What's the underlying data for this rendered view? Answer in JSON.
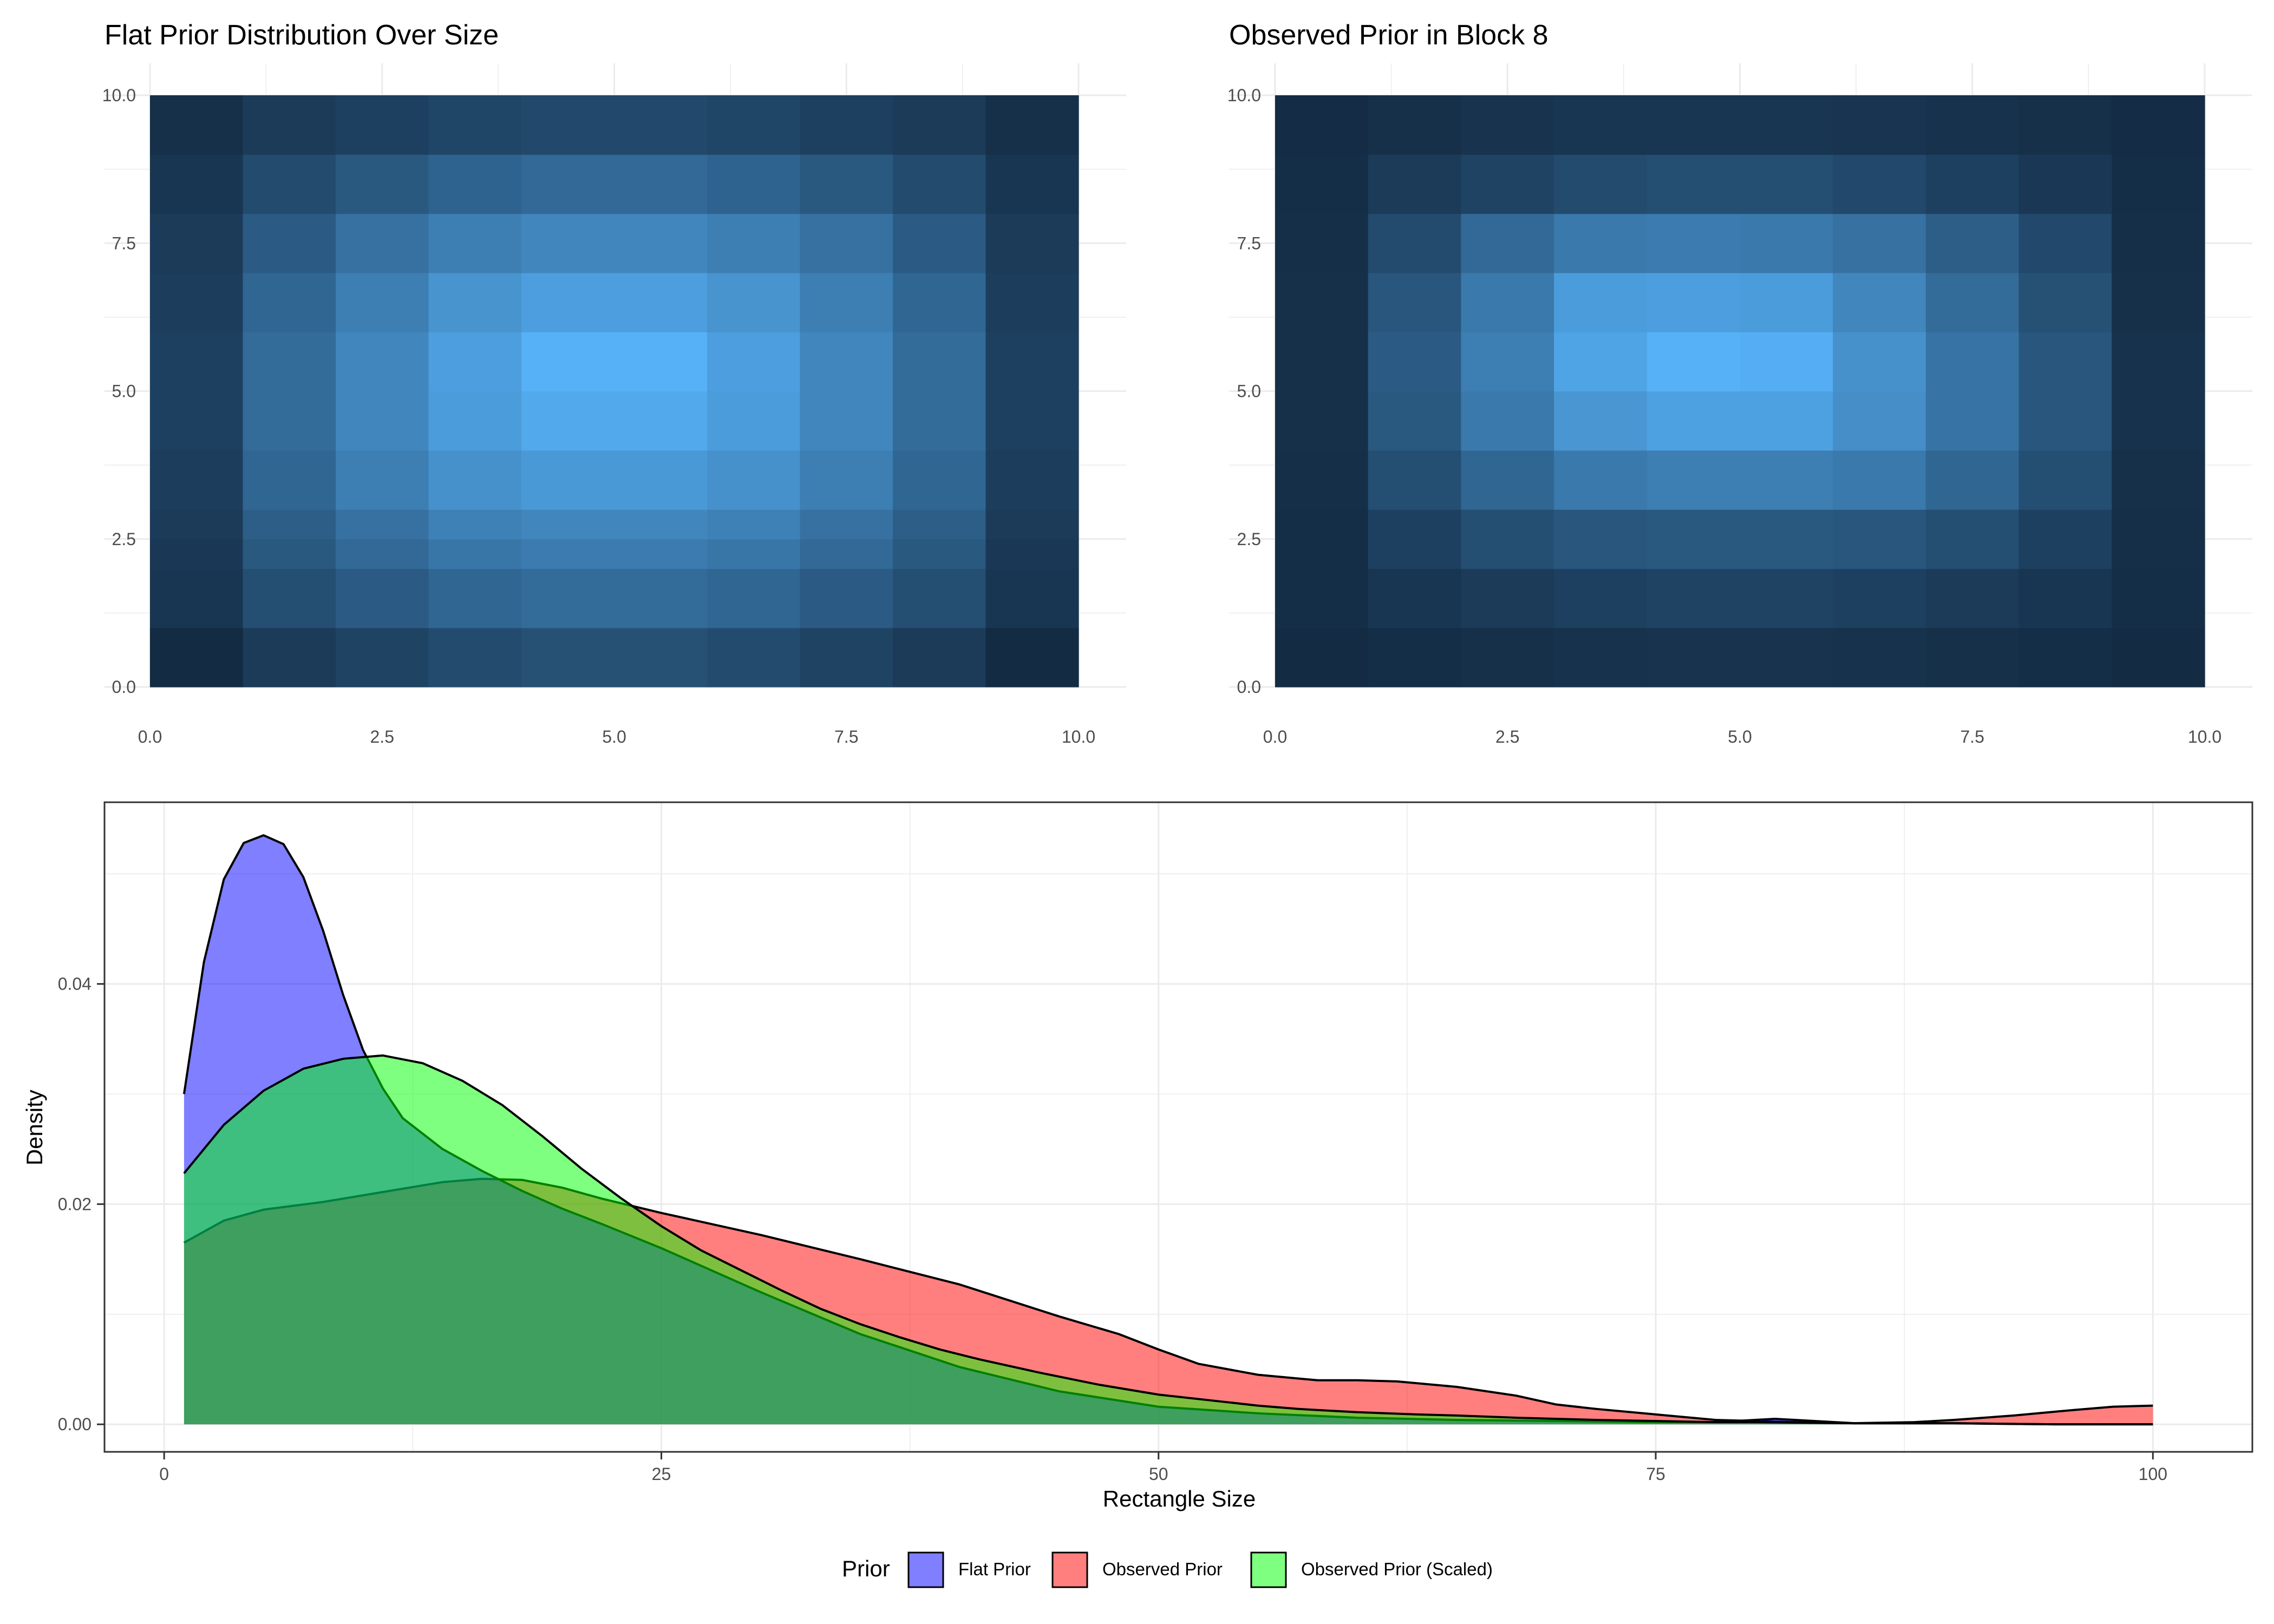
{
  "chart_data": [
    {
      "type": "heatmap",
      "title": "Flat Prior Distribution Over Size",
      "xlabel": "",
      "ylabel": "",
      "xlim": [
        0,
        10
      ],
      "ylim": [
        0,
        10
      ],
      "x_ticks": [
        "0.0",
        "2.5",
        "5.0",
        "7.5",
        "10.0"
      ],
      "y_ticks": [
        "0.0",
        "2.5",
        "5.0",
        "7.5",
        "10.0"
      ],
      "x_edges": [
        0,
        1,
        2,
        3,
        4,
        5,
        6,
        7,
        8,
        9,
        10
      ],
      "y_edges": [
        0,
        1,
        2,
        2.5,
        3,
        4,
        5,
        6,
        7,
        8,
        9,
        10
      ],
      "values": [
        [
          0.0,
          0.12,
          0.18,
          0.24,
          0.28,
          0.28,
          0.24,
          0.18,
          0.12,
          0.0
        ],
        [
          0.08,
          0.26,
          0.36,
          0.44,
          0.48,
          0.48,
          0.44,
          0.36,
          0.26,
          0.08
        ],
        [
          0.1,
          0.34,
          0.46,
          0.56,
          0.6,
          0.6,
          0.56,
          0.46,
          0.34,
          0.1
        ],
        [
          0.12,
          0.38,
          0.52,
          0.64,
          0.68,
          0.68,
          0.64,
          0.52,
          0.38,
          0.12
        ],
        [
          0.14,
          0.44,
          0.62,
          0.76,
          0.82,
          0.82,
          0.76,
          0.62,
          0.44,
          0.14
        ],
        [
          0.16,
          0.48,
          0.68,
          0.84,
          0.94,
          0.94,
          0.84,
          0.68,
          0.48,
          0.16
        ],
        [
          0.16,
          0.48,
          0.68,
          0.86,
          1.0,
          1.0,
          0.86,
          0.68,
          0.48,
          0.16
        ],
        [
          0.14,
          0.44,
          0.62,
          0.78,
          0.86,
          0.86,
          0.78,
          0.62,
          0.44,
          0.14
        ],
        [
          0.12,
          0.36,
          0.52,
          0.62,
          0.68,
          0.68,
          0.62,
          0.52,
          0.36,
          0.12
        ],
        [
          0.08,
          0.24,
          0.34,
          0.42,
          0.46,
          0.46,
          0.42,
          0.34,
          0.24,
          0.08
        ],
        [
          0.04,
          0.12,
          0.16,
          0.2,
          0.22,
          0.22,
          0.2,
          0.16,
          0.12,
          0.04
        ]
      ],
      "color_low": "#132b43",
      "color_high": "#56b1f7",
      "grid": true
    },
    {
      "type": "heatmap",
      "title": "Observed Prior in Block 8",
      "xlabel": "",
      "ylabel": "",
      "xlim": [
        0,
        10
      ],
      "ylim": [
        0,
        10
      ],
      "x_ticks": [
        "0.0",
        "2.5",
        "5.0",
        "7.5",
        "10.0"
      ],
      "y_ticks": [
        "0.0",
        "2.5",
        "5.0",
        "7.5",
        "10.0"
      ],
      "x_edges": [
        0,
        1,
        2,
        3,
        4,
        5,
        6,
        7,
        8,
        9,
        10
      ],
      "y_edges": [
        0,
        1,
        2,
        3,
        4,
        5,
        6,
        7,
        8,
        9,
        10
      ],
      "values": [
        [
          0.0,
          0.02,
          0.04,
          0.05,
          0.06,
          0.06,
          0.05,
          0.04,
          0.02,
          0.0
        ],
        [
          0.02,
          0.08,
          0.12,
          0.16,
          0.18,
          0.18,
          0.16,
          0.12,
          0.08,
          0.02
        ],
        [
          0.02,
          0.16,
          0.26,
          0.32,
          0.34,
          0.34,
          0.32,
          0.26,
          0.16,
          0.03
        ],
        [
          0.03,
          0.26,
          0.44,
          0.58,
          0.62,
          0.62,
          0.58,
          0.44,
          0.26,
          0.04
        ],
        [
          0.04,
          0.34,
          0.58,
          0.8,
          0.88,
          0.88,
          0.74,
          0.54,
          0.32,
          0.05
        ],
        [
          0.04,
          0.36,
          0.62,
          0.9,
          1.0,
          0.98,
          0.76,
          0.54,
          0.32,
          0.05
        ],
        [
          0.04,
          0.32,
          0.58,
          0.84,
          0.86,
          0.84,
          0.68,
          0.48,
          0.28,
          0.04
        ],
        [
          0.03,
          0.24,
          0.46,
          0.58,
          0.6,
          0.58,
          0.52,
          0.38,
          0.22,
          0.03
        ],
        [
          0.02,
          0.12,
          0.18,
          0.24,
          0.26,
          0.26,
          0.22,
          0.16,
          0.1,
          0.02
        ],
        [
          0.01,
          0.04,
          0.06,
          0.08,
          0.08,
          0.08,
          0.07,
          0.05,
          0.04,
          0.01
        ]
      ],
      "color_low": "#132b43",
      "color_high": "#56b1f7",
      "grid": true
    },
    {
      "type": "area",
      "title": "",
      "xlabel": "Rectangle Size",
      "ylabel": "Density",
      "xlim": [
        -3,
        105
      ],
      "ylim": [
        -0.0025,
        0.0565
      ],
      "x_ticks": [
        0,
        25,
        50,
        75,
        100
      ],
      "x_tick_labels": [
        "0",
        "25",
        "50",
        "75",
        "100"
      ],
      "y_ticks": [
        0,
        0.02,
        0.04
      ],
      "y_tick_labels": [
        "0.00",
        "0.02",
        "0.04"
      ],
      "grid": true,
      "legend_title": "Prior",
      "legend_position": "bottom",
      "series": [
        {
          "name": "Flat Prior",
          "color": "#0000ff",
          "x": [
            1,
            2,
            3,
            4,
            5,
            6,
            7,
            8,
            9,
            10,
            11,
            12,
            14,
            16,
            18,
            20,
            22,
            25,
            28,
            30,
            35,
            40,
            45,
            50,
            55,
            60,
            65,
            70,
            75,
            78,
            80,
            81,
            82,
            85,
            90,
            95,
            100
          ],
          "y": [
            0.03,
            0.042,
            0.0495,
            0.0528,
            0.0535,
            0.0527,
            0.0497,
            0.0448,
            0.039,
            0.034,
            0.0305,
            0.0278,
            0.025,
            0.023,
            0.0212,
            0.0196,
            0.0182,
            0.016,
            0.0136,
            0.012,
            0.0082,
            0.0052,
            0.003,
            0.0016,
            0.001,
            0.0006,
            0.0004,
            0.0003,
            0.0002,
            0.0002,
            0.0004,
            0.0005,
            0.0004,
            0.0001,
            0.0001,
            0.0,
            0.0
          ]
        },
        {
          "name": "Observed Prior",
          "color": "#ff0000",
          "x": [
            1,
            3,
            5,
            8,
            10,
            12,
            14,
            16,
            18,
            20,
            22,
            25,
            28,
            30,
            35,
            40,
            45,
            48,
            50,
            52,
            55,
            58,
            60,
            62,
            65,
            68,
            70,
            72,
            75,
            78,
            80,
            82,
            85,
            88,
            90,
            93,
            96,
            98,
            100
          ],
          "y": [
            0.0165,
            0.0185,
            0.0195,
            0.0202,
            0.0208,
            0.0214,
            0.022,
            0.0223,
            0.0222,
            0.0215,
            0.0205,
            0.0192,
            0.018,
            0.0172,
            0.015,
            0.0127,
            0.0098,
            0.0082,
            0.0068,
            0.0055,
            0.0045,
            0.004,
            0.004,
            0.0039,
            0.0034,
            0.0026,
            0.0018,
            0.0014,
            0.0009,
            0.0004,
            0.0003,
            0.0002,
            0.0001,
            0.0002,
            0.0004,
            0.0008,
            0.0013,
            0.0016,
            0.0017
          ]
        },
        {
          "name": "Observed Prior (Scaled)",
          "color": "#00ff00",
          "x": [
            1,
            3,
            5,
            7,
            9,
            11,
            13,
            15,
            17,
            19,
            21,
            23,
            25,
            27,
            29,
            31,
            33,
            35,
            37,
            39,
            41,
            44,
            47,
            50,
            53,
            55,
            57,
            60,
            63,
            65,
            68,
            70,
            72,
            75,
            78,
            80,
            85,
            90,
            95,
            100
          ],
          "y": [
            0.0228,
            0.0272,
            0.0303,
            0.0323,
            0.0332,
            0.0335,
            0.0328,
            0.0312,
            0.029,
            0.0262,
            0.0232,
            0.0205,
            0.018,
            0.0158,
            0.014,
            0.0122,
            0.0105,
            0.0091,
            0.0079,
            0.0068,
            0.0059,
            0.0047,
            0.0036,
            0.0027,
            0.0021,
            0.0017,
            0.0014,
            0.0011,
            0.0009,
            0.0008,
            0.0006,
            0.0005,
            0.0004,
            0.0003,
            0.0002,
            0.0002,
            0.0001,
            0.0001,
            0.0,
            0.0
          ]
        }
      ]
    }
  ]
}
